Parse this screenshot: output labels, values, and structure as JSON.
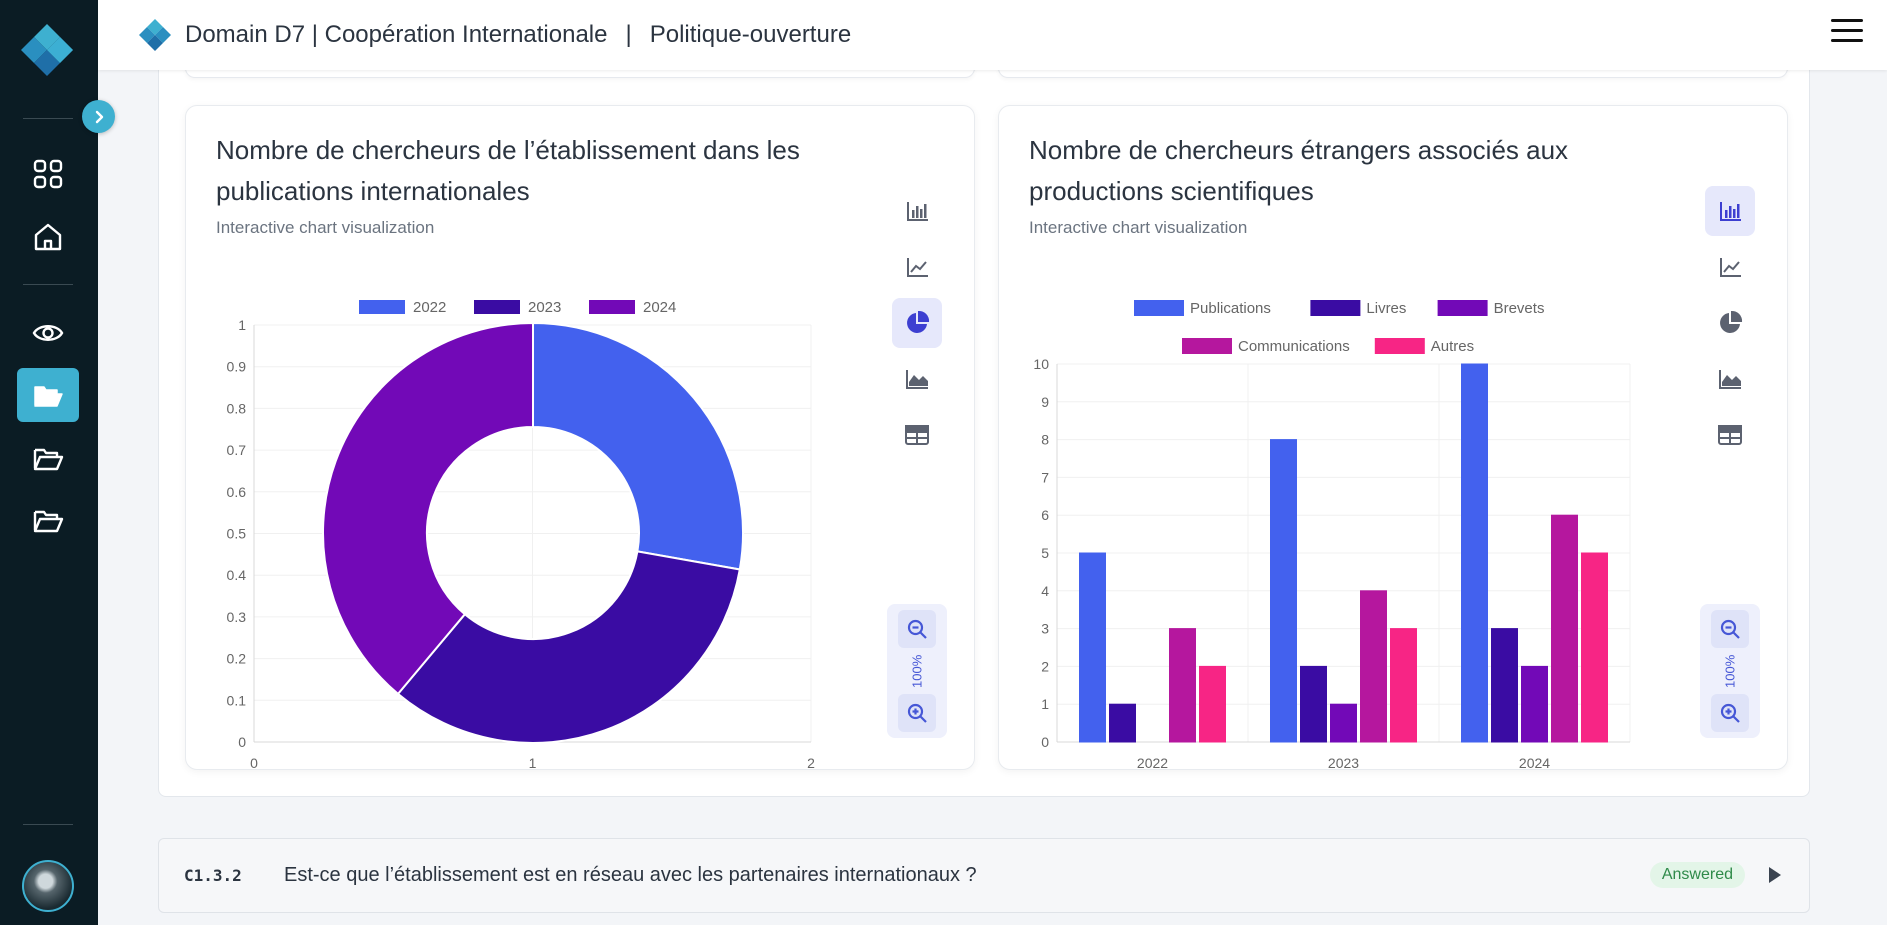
{
  "header": {
    "title": "Domain D7 | Coopération Internationale",
    "separator": "|",
    "subtitle": "Politique-ouverture"
  },
  "sidebar": {
    "items": [
      {
        "name": "dashboard-grid-icon"
      },
      {
        "name": "home-icon"
      },
      {
        "name": "eye-icon"
      },
      {
        "name": "folder-open-icon",
        "active": true
      },
      {
        "name": "folder-icon"
      },
      {
        "name": "folder-icon"
      }
    ],
    "accent": "#3eb0d0"
  },
  "charts": [
    {
      "title": "Nombre de chercheurs de l’établissement dans les publications internationales",
      "subtitle": "Interactive chart visualization",
      "active_tool": "pie",
      "zoom": "100%"
    },
    {
      "title": "Nombre de chercheurs étrangers associés aux productions scientifiques",
      "subtitle": "Interactive chart visualization",
      "active_tool": "bar",
      "zoom": "100%"
    }
  ],
  "chart_data": [
    {
      "type": "pie",
      "variant": "doughnut",
      "categories": [
        "2022",
        "2023",
        "2024"
      ],
      "values": [
        5,
        6,
        7
      ],
      "colors": [
        "#4361ee",
        "#3a0ca3",
        "#7209b7"
      ],
      "legend_placement": "top",
      "y_ticks": [
        "0",
        "0.1",
        "0.2",
        "0.3",
        "0.4",
        "0.5",
        "0.6",
        "0.7",
        "0.8",
        "0.9",
        "1"
      ],
      "x_ticks": [
        "0",
        "1",
        "2"
      ],
      "grid": true
    },
    {
      "type": "bar",
      "categories": [
        "2022",
        "2023",
        "2024"
      ],
      "series": [
        {
          "name": "Publications",
          "values": [
            5,
            8,
            10
          ],
          "color": "#4361ee"
        },
        {
          "name": "Livres",
          "values": [
            1,
            2,
            3
          ],
          "color": "#3a0ca3"
        },
        {
          "name": "Brevets",
          "values": [
            0,
            1,
            2
          ],
          "color": "#7209b7"
        },
        {
          "name": "Communications",
          "values": [
            3,
            4,
            6
          ],
          "color": "#b5179e"
        },
        {
          "name": "Autres",
          "values": [
            2,
            3,
            5
          ],
          "color": "#f72585"
        }
      ],
      "ylim": [
        0,
        10
      ],
      "y_ticks": [
        "0",
        "1",
        "2",
        "3",
        "4",
        "5",
        "6",
        "7",
        "8",
        "9",
        "10"
      ],
      "legend_placement": "top",
      "grid": true
    }
  ],
  "question": {
    "code": "C1.3.2",
    "text": "Est-ce que l’établissement est en réseau avec les partenaires internationaux ?",
    "status": "Answered"
  }
}
